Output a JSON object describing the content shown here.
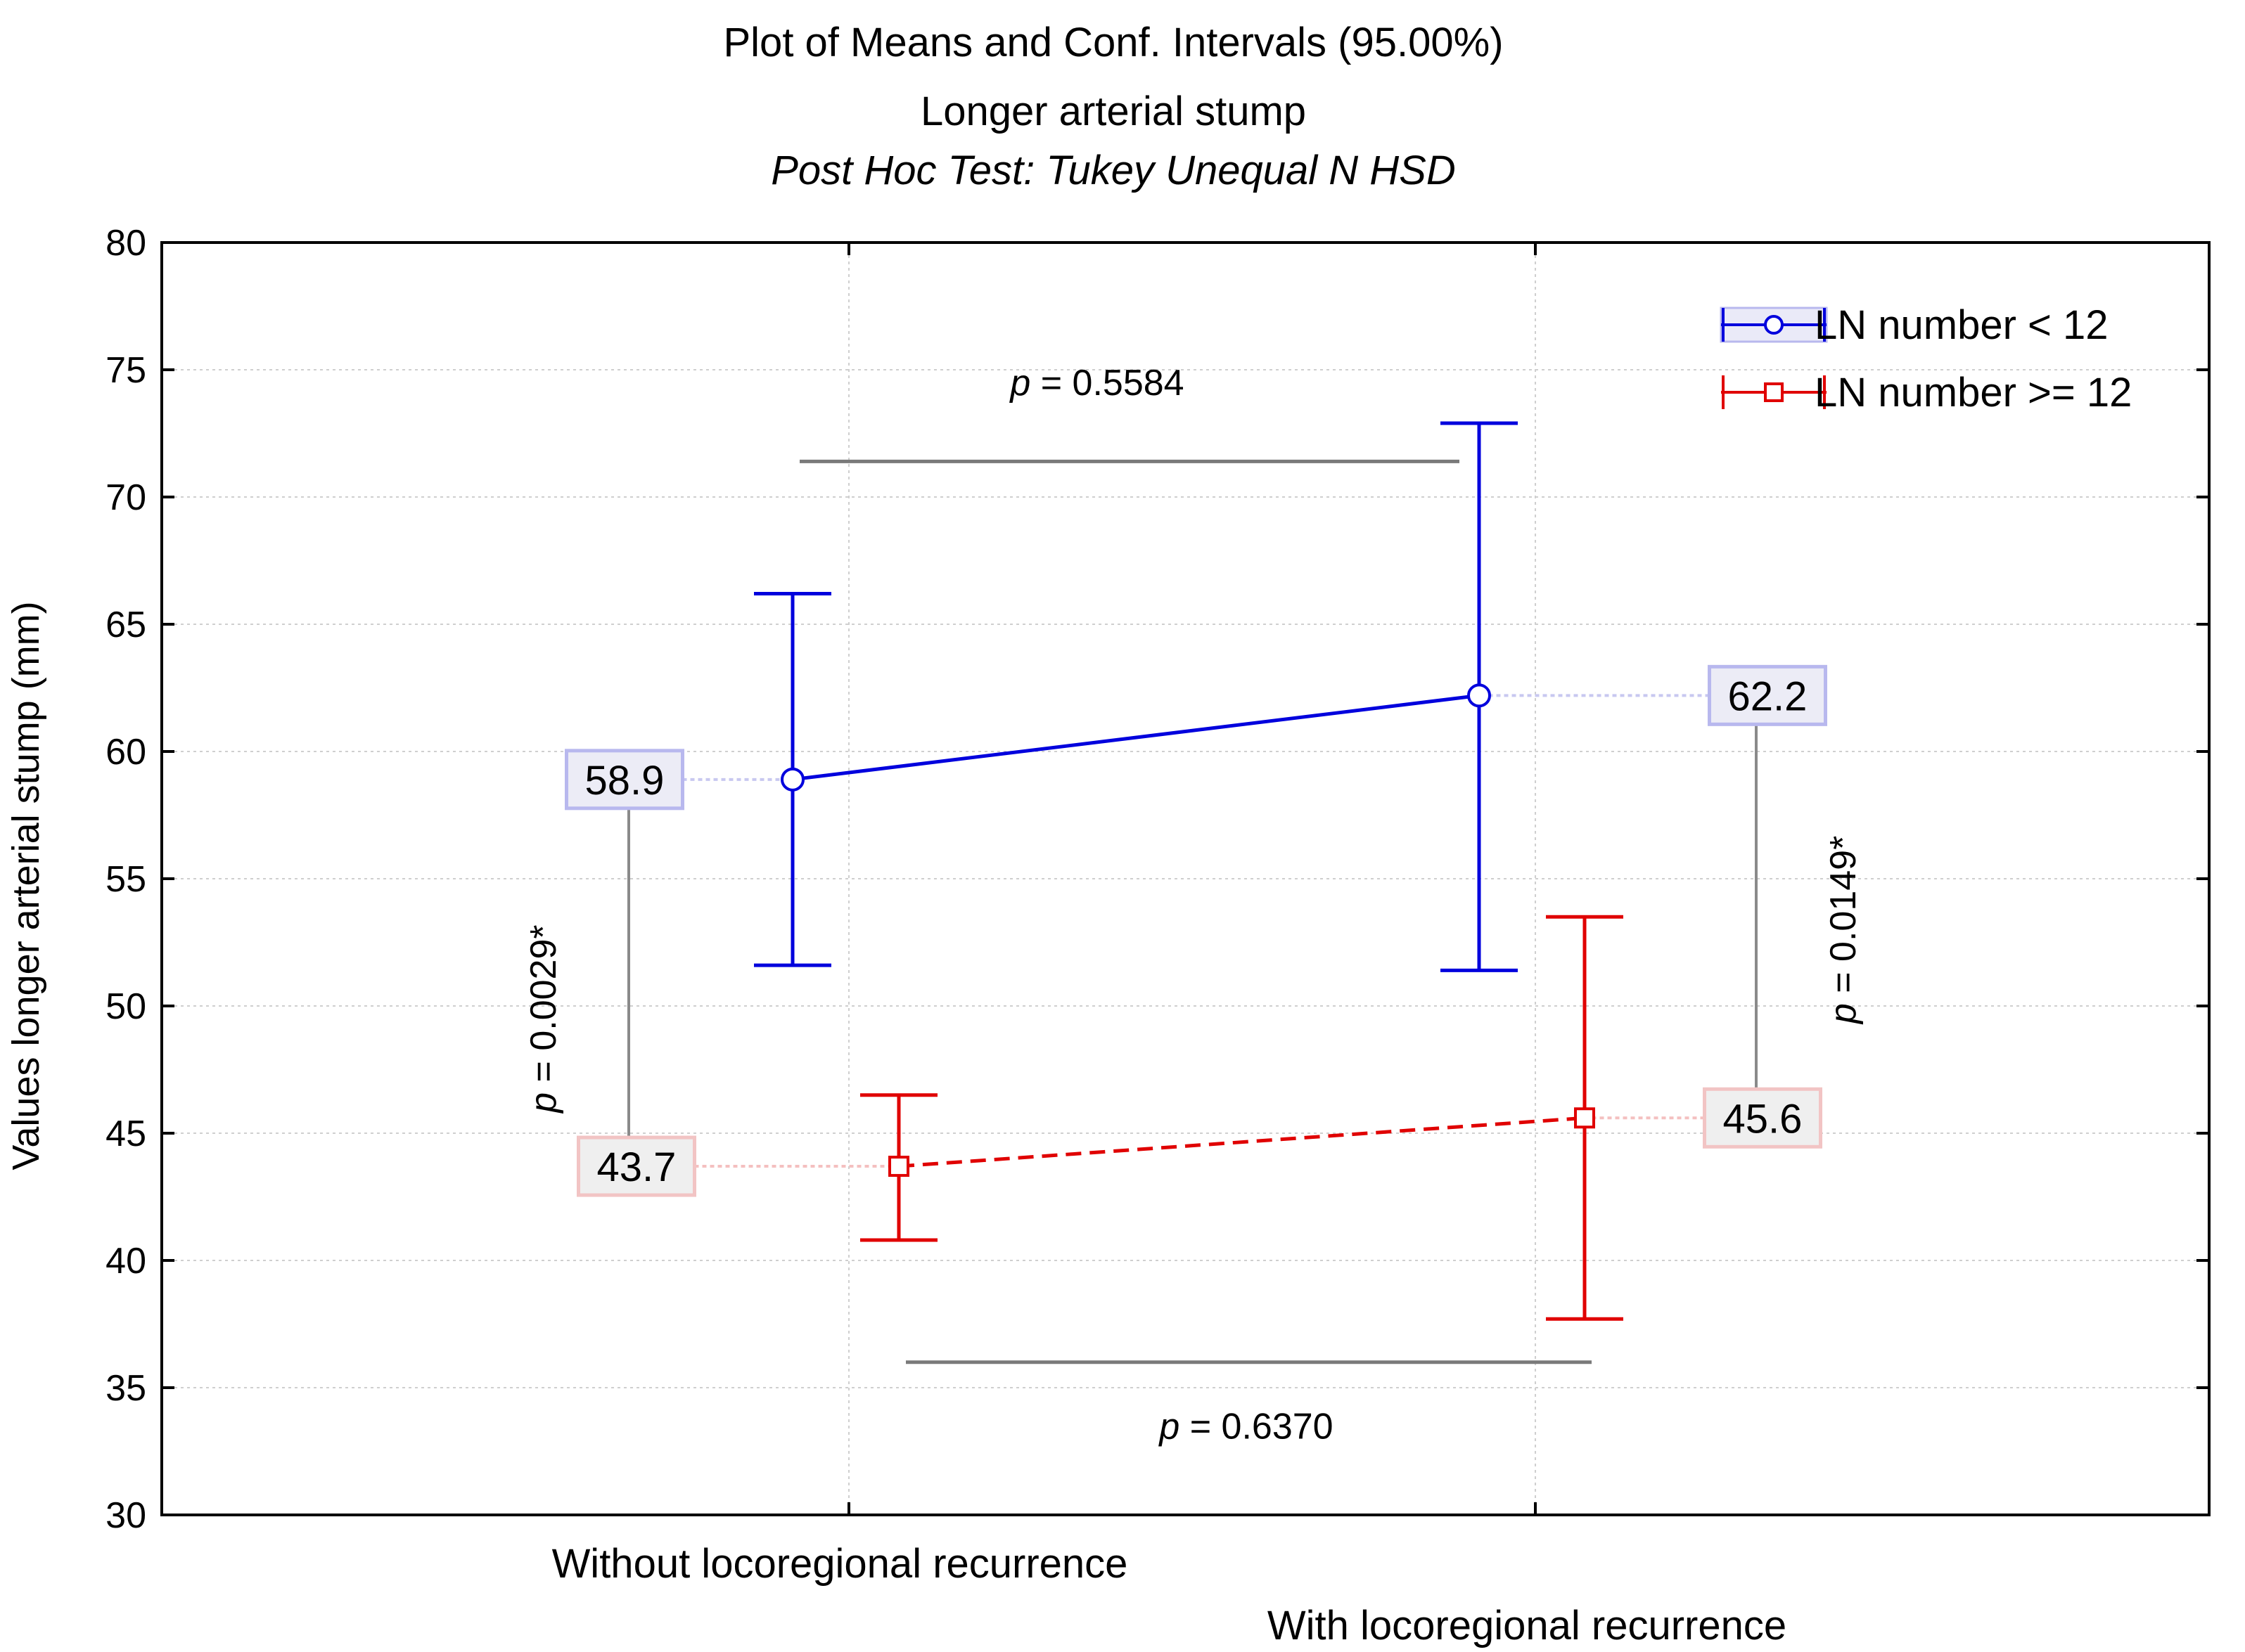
{
  "chart_data": {
    "type": "line",
    "title": "Plot of Means and Conf. Intervals (95.00%)",
    "subtitle": "Longer arterial stump",
    "subtitle2": "Post Hoc Test: Tukey Unequal N HSD",
    "xlabel": "",
    "ylabel": "Values longer arterial stump (mm)",
    "ylim": [
      30,
      80
    ],
    "yticks": [
      30,
      35,
      40,
      45,
      50,
      55,
      60,
      65,
      70,
      75,
      80
    ],
    "grid": true,
    "categories": [
      "Without locoregional recurrence",
      "With locoregional recurrence"
    ],
    "series": [
      {
        "name": "LN number < 12",
        "color": "#0000dd",
        "marker": "circle",
        "line_style": "solid",
        "means": [
          58.9,
          62.2
        ],
        "ci_lower": [
          51.6,
          51.4
        ],
        "ci_upper": [
          66.2,
          72.9
        ],
        "labels": [
          "58.9",
          "62.2"
        ],
        "label_fill": "#ececf6",
        "label_border": "#b8b8ee"
      },
      {
        "name": "LN number >= 12",
        "color": "#e00000",
        "marker": "square",
        "line_style": "dashed",
        "means": [
          43.7,
          45.6
        ],
        "ci_lower": [
          40.8,
          37.7
        ],
        "ci_upper": [
          46.5,
          53.5
        ],
        "labels": [
          "43.7",
          "45.6"
        ],
        "label_fill": "#efefef",
        "label_border": "#f2c4c4"
      }
    ],
    "annotations": [
      {
        "text": "0.5584",
        "prefix": "p = ",
        "orientation": "horizontal",
        "compares": "LN number < 12 across groups"
      },
      {
        "text": "0.6370",
        "prefix": "p = ",
        "orientation": "horizontal",
        "compares": "LN number >= 12 across groups"
      },
      {
        "text": "0.0029*",
        "prefix": "p = ",
        "orientation": "vertical",
        "compares": "Without locoregional recurrence"
      },
      {
        "text": "0.0149*",
        "prefix": "p = ",
        "orientation": "vertical",
        "compares": "With locoregional recurrence"
      }
    ],
    "legend": {
      "position": "top-right",
      "entries": [
        "LN number < 12",
        "LN number >= 12"
      ]
    }
  }
}
